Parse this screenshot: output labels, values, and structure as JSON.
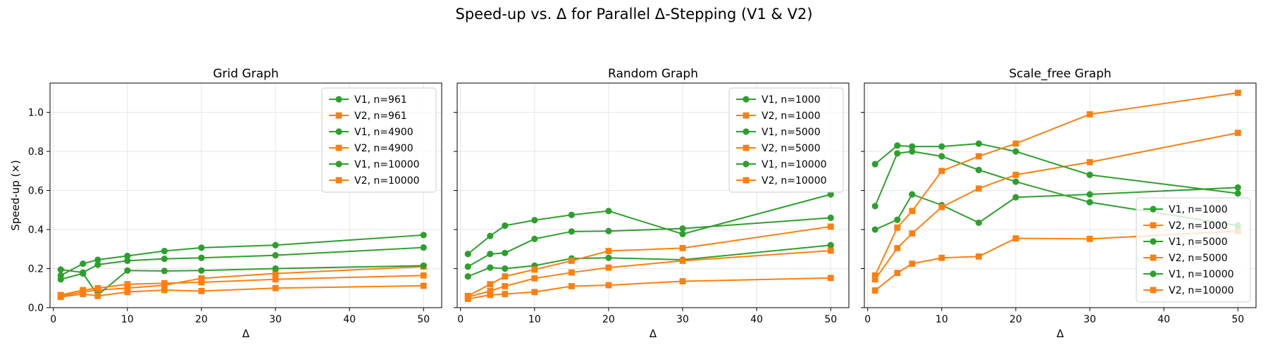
{
  "figure": {
    "title": "Speed-up vs. Δ for Parallel Δ-Stepping (V1 & V2)"
  },
  "colors": {
    "v1": "#2ca02c",
    "v2": "#ff7f0e",
    "grid": "#e6e6e6"
  },
  "chart_data": [
    {
      "type": "line",
      "title": "Grid Graph",
      "xlabel": "Δ",
      "ylabel": "Speed-up (×)",
      "xlim": [
        -0.45,
        52.45
      ],
      "ylim": [
        0,
        1.15
      ],
      "xticks": [
        "0",
        "10",
        "20",
        "30",
        "40",
        "50"
      ],
      "yticks": [
        "0.0",
        "0.2",
        "0.4",
        "0.6",
        "0.8",
        "1.0"
      ],
      "grid": true,
      "legend": "upper right",
      "x": [
        1,
        4,
        6,
        10,
        15,
        20,
        30,
        50
      ],
      "series": [
        {
          "name": "V1, n=961",
          "version": "V1",
          "marker": "circle",
          "values": [
            0.195,
            0.18,
            0.22,
            0.24,
            0.25,
            0.255,
            0.268,
            0.308
          ]
        },
        {
          "name": "V2, n=961",
          "version": "V2",
          "marker": "square",
          "values": [
            0.06,
            0.08,
            0.09,
            0.1,
            0.115,
            0.15,
            0.175,
            0.21
          ]
        },
        {
          "name": "V1, n=4900",
          "version": "V1",
          "marker": "circle",
          "values": [
            0.145,
            0.175,
            0.065,
            0.19,
            0.188,
            0.19,
            0.2,
            0.215
          ]
        },
        {
          "name": "V2, n=4900",
          "version": "V2",
          "marker": "square",
          "values": [
            0.065,
            0.09,
            0.1,
            0.12,
            0.125,
            0.13,
            0.145,
            0.165
          ]
        },
        {
          "name": "V1, n=10000",
          "version": "V1",
          "marker": "circle",
          "values": [
            0.165,
            0.225,
            0.245,
            0.265,
            0.29,
            0.307,
            0.32,
            0.372
          ]
        },
        {
          "name": "V2, n=10000",
          "version": "V2",
          "marker": "square",
          "values": [
            0.055,
            0.07,
            0.06,
            0.08,
            0.09,
            0.085,
            0.1,
            0.112
          ]
        }
      ]
    },
    {
      "type": "line",
      "title": "Random Graph",
      "xlabel": "Δ",
      "ylabel": "",
      "xlim": [
        -0.45,
        52.45
      ],
      "ylim": [
        0,
        1.15
      ],
      "xticks": [
        "0",
        "10",
        "20",
        "30",
        "40",
        "50"
      ],
      "yticks": [],
      "grid": true,
      "legend": "upper right",
      "x": [
        1,
        4,
        6,
        10,
        15,
        20,
        30,
        50
      ],
      "series": [
        {
          "name": "V1, n=1000",
          "version": "V1",
          "marker": "circle",
          "values": [
            0.16,
            0.205,
            0.2,
            0.215,
            0.252,
            0.255,
            0.245,
            0.32
          ]
        },
        {
          "name": "V2, n=1000",
          "version": "V2",
          "marker": "square",
          "values": [
            0.045,
            0.065,
            0.07,
            0.08,
            0.11,
            0.115,
            0.135,
            0.152
          ]
        },
        {
          "name": "V1, n=5000",
          "version": "V1",
          "marker": "circle",
          "values": [
            0.21,
            0.275,
            0.28,
            0.352,
            0.39,
            0.392,
            0.405,
            0.46
          ]
        },
        {
          "name": "V2, n=5000",
          "version": "V2",
          "marker": "square",
          "values": [
            0.055,
            0.085,
            0.11,
            0.15,
            0.18,
            0.205,
            0.24,
            0.292
          ]
        },
        {
          "name": "V1, n=10000",
          "version": "V1",
          "marker": "circle",
          "values": [
            0.275,
            0.367,
            0.42,
            0.448,
            0.475,
            0.495,
            0.377,
            0.58
          ]
        },
        {
          "name": "V2, n=10000",
          "version": "V2",
          "marker": "square",
          "values": [
            0.06,
            0.12,
            0.16,
            0.195,
            0.24,
            0.29,
            0.305,
            0.415
          ]
        }
      ]
    },
    {
      "type": "line",
      "title": "Scale_free Graph",
      "xlabel": "Δ",
      "ylabel": "",
      "xlim": [
        -0.45,
        52.45
      ],
      "ylim": [
        0,
        1.15
      ],
      "xticks": [
        "0",
        "10",
        "20",
        "30",
        "40",
        "50"
      ],
      "yticks": [],
      "grid": true,
      "legend": "lower right",
      "x": [
        1,
        4,
        6,
        10,
        15,
        20,
        30,
        50
      ],
      "series": [
        {
          "name": "V1, n=1000",
          "version": "V1",
          "marker": "circle",
          "values": [
            0.4,
            0.45,
            0.58,
            0.525,
            0.435,
            0.565,
            0.58,
            0.615
          ]
        },
        {
          "name": "V2, n=1000",
          "version": "V2",
          "marker": "square",
          "values": [
            0.088,
            0.178,
            0.225,
            0.255,
            0.262,
            0.355,
            0.352,
            0.392
          ]
        },
        {
          "name": "V1, n=5000",
          "version": "V1",
          "marker": "circle",
          "values": [
            0.52,
            0.79,
            0.8,
            0.775,
            0.705,
            0.645,
            0.54,
            0.42
          ]
        },
        {
          "name": "V2, n=5000",
          "version": "V2",
          "marker": "square",
          "values": [
            0.145,
            0.305,
            0.38,
            0.515,
            0.61,
            0.68,
            0.745,
            0.895
          ]
        },
        {
          "name": "V1, n=10000",
          "version": "V1",
          "marker": "circle",
          "values": [
            0.735,
            0.83,
            0.825,
            0.825,
            0.84,
            0.8,
            0.68,
            0.585
          ]
        },
        {
          "name": "V2, n=10000",
          "version": "V2",
          "marker": "square",
          "values": [
            0.165,
            0.41,
            0.495,
            0.7,
            0.775,
            0.84,
            0.99,
            1.1
          ]
        }
      ]
    }
  ]
}
